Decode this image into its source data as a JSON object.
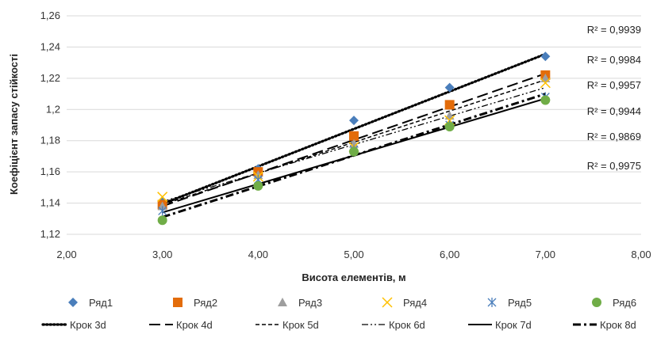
{
  "chart_data": {
    "type": "scatter",
    "xlabel": "Висота елементів, м",
    "ylabel": "Коефіцієнт  запасу стійкості",
    "xlim": [
      2,
      8
    ],
    "ylim": [
      1.12,
      1.26
    ],
    "xticks": [
      2,
      3,
      4,
      5,
      6,
      7,
      8
    ],
    "yticks": [
      1.12,
      1.14,
      1.16,
      1.18,
      1.2,
      1.22,
      1.24,
      1.26
    ],
    "xtick_labels": [
      "2,00",
      "3,00",
      "4,00",
      "5,00",
      "6,00",
      "7,00",
      "8,00"
    ],
    "ytick_labels": [
      "1,12",
      "1,14",
      "1,16",
      "1,18",
      "1,2",
      "1,22",
      "1,24",
      "1,26"
    ],
    "grid": "horizontal",
    "legend_position": "bottom",
    "x": [
      3,
      4,
      5,
      6,
      7
    ],
    "series": [
      {
        "name": "Ряд1",
        "marker": "diamond",
        "color": "#4a7ebb",
        "values": [
          1.141,
          1.162,
          1.193,
          1.214,
          1.234
        ]
      },
      {
        "name": "Ряд2",
        "marker": "square",
        "color": "#e36c0a",
        "values": [
          1.139,
          1.16,
          1.183,
          1.203,
          1.222
        ]
      },
      {
        "name": "Ряд3",
        "marker": "triangle",
        "color": "#9e9e9e",
        "values": [
          1.138,
          1.158,
          1.178,
          1.196,
          1.22
        ]
      },
      {
        "name": "Ряд4",
        "marker": "x",
        "color": "#ffc000",
        "values": [
          1.144,
          1.157,
          1.176,
          1.193,
          1.217
        ]
      },
      {
        "name": "Ряд5",
        "marker": "asterisk",
        "color": "#4a7ebb",
        "values": [
          1.135,
          1.155,
          1.174,
          1.19,
          1.208
        ]
      },
      {
        "name": "Ряд6",
        "marker": "circle",
        "color": "#70ad47",
        "values": [
          1.129,
          1.151,
          1.173,
          1.189,
          1.206
        ]
      }
    ],
    "trendlines": [
      {
        "name": "Крок 3d",
        "dash": "dot-heavy",
        "start": 1.1395,
        "end": 1.2355,
        "r2": "R² = 0,9939"
      },
      {
        "name": "Крок 4d",
        "dash": "long-dash",
        "start": 1.138,
        "end": 1.223,
        "r2": "R² = 0,9984"
      },
      {
        "name": "Крок 5d",
        "dash": "dash",
        "start": 1.139,
        "end": 1.219,
        "r2": "R² = 0,9957"
      },
      {
        "name": "Крок 6d",
        "dash": "dash-dot-dot",
        "start": 1.141,
        "end": 1.214,
        "r2": "R² = 0,9944"
      },
      {
        "name": "Крок 7d",
        "dash": "solid",
        "start": 1.134,
        "end": 1.207,
        "r2": "R² = 0,9869"
      },
      {
        "name": "Крок 8d",
        "dash": "dash-dot-heavy",
        "start": 1.131,
        "end": 1.21,
        "r2": "R² = 0,9975"
      }
    ]
  }
}
